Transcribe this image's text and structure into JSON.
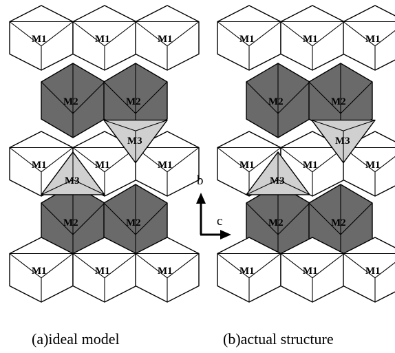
{
  "figure": {
    "panels": [
      {
        "id": "a",
        "caption": "(a)ideal model",
        "labels": {
          "m1": "M1",
          "m2": "M2",
          "m3": "M3"
        }
      },
      {
        "id": "b",
        "caption": "(b)actual structure",
        "labels": {
          "m1": "M1",
          "m2": "M2",
          "m3": "M3"
        }
      }
    ],
    "axes": {
      "vertical": "b",
      "horizontal": "c"
    },
    "colors": {
      "m1": "#ffffff",
      "m2": "#6a6a6a",
      "m3": "#d0d0d0",
      "stroke": "#000000"
    }
  }
}
